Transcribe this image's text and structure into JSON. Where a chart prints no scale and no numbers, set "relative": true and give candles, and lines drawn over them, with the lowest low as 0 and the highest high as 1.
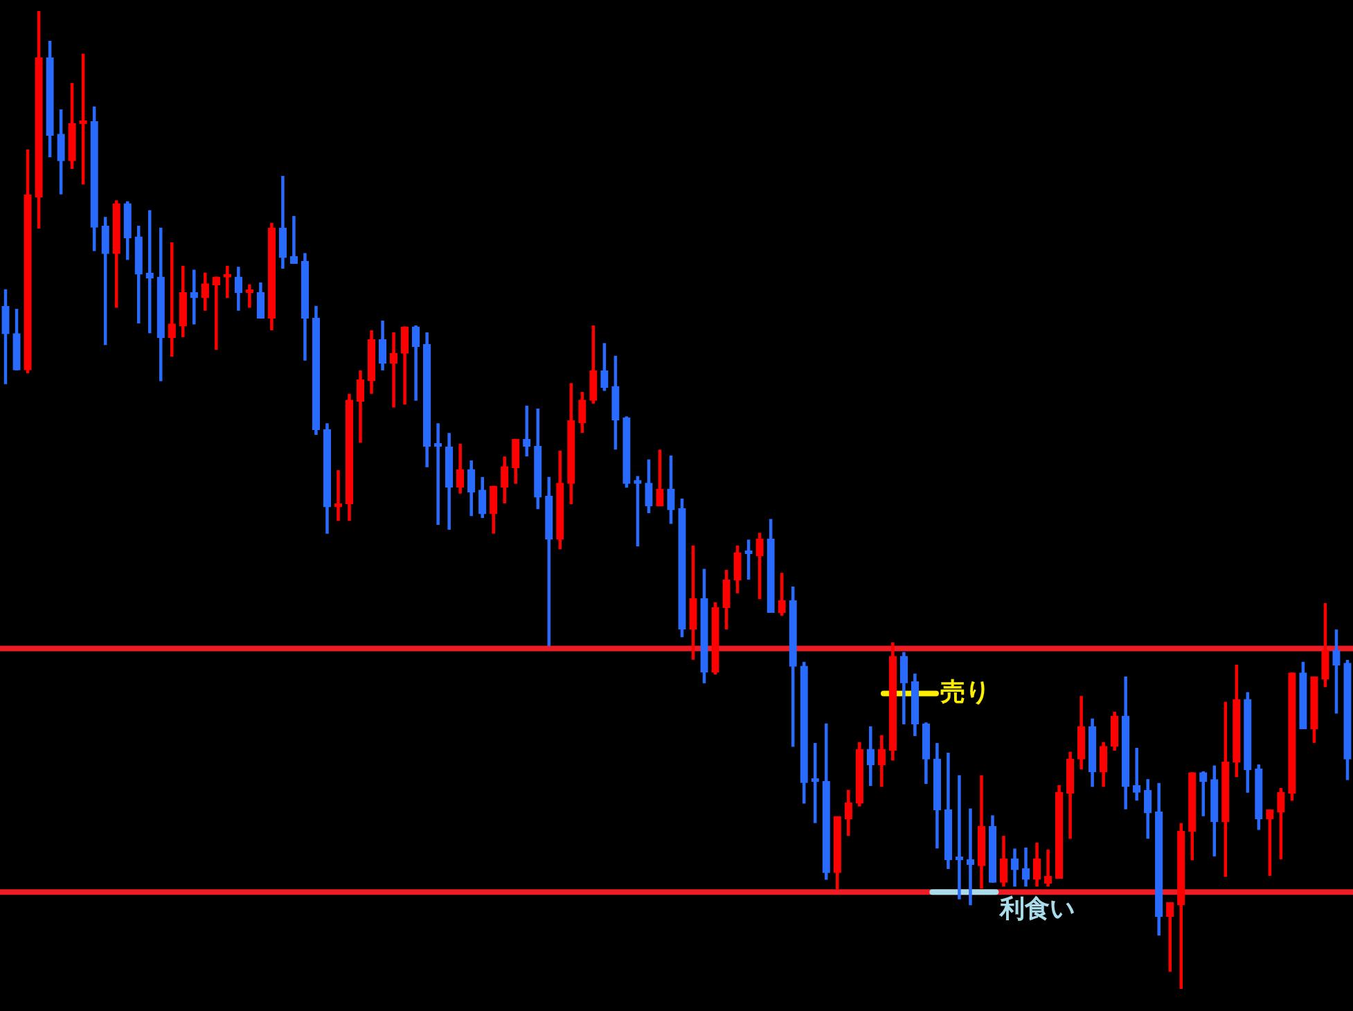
{
  "chart_data": {
    "type": "candlestick",
    "relative": true,
    "tick_labels": false,
    "legend": false,
    "categories": [
      null,
      null,
      null,
      null,
      null,
      null,
      null,
      null,
      null,
      null,
      null,
      null,
      null,
      null,
      null,
      null,
      null,
      null,
      null,
      null,
      null,
      null,
      null,
      null,
      null,
      null,
      null,
      null,
      null,
      null,
      null,
      null,
      null,
      null,
      null,
      null,
      null,
      null,
      null,
      null,
      null,
      null,
      null,
      null,
      null,
      null,
      null,
      null,
      null,
      null,
      null,
      null,
      null,
      null,
      null,
      null,
      null,
      null,
      null,
      null,
      null,
      null,
      null,
      null,
      null,
      null,
      null,
      null,
      null,
      null,
      null,
      null,
      null,
      null,
      null,
      null,
      null,
      null,
      null,
      null,
      null,
      null,
      null,
      null,
      null,
      null,
      null,
      null,
      null,
      null,
      null,
      null,
      null,
      null,
      null,
      null,
      null,
      null,
      null,
      null,
      null,
      null,
      null,
      null,
      null,
      null,
      null,
      null,
      null,
      null,
      null,
      null,
      null,
      null,
      null,
      null,
      null,
      null,
      null,
      null,
      null,
      null
    ],
    "ohlc": [
      [
        0.698,
        0.715,
        0.619,
        0.67
      ],
      [
        0.67,
        0.695,
        0.633,
        0.633
      ],
      [
        0.633,
        0.858,
        0.63,
        0.812
      ],
      [
        0.81,
        1,
        0.778,
        0.952
      ],
      [
        0.952,
        0.969,
        0.851,
        0.873
      ],
      [
        0.874,
        0.899,
        0.813,
        0.847
      ],
      [
        0.847,
        0.926,
        0.839,
        0.885
      ],
      [
        0.885,
        0.956,
        0.823,
        0.887
      ],
      [
        0.887,
        0.902,
        0.755,
        0.779
      ],
      [
        0.78,
        0.789,
        0.659,
        0.752
      ],
      [
        0.752,
        0.806,
        0.697,
        0.803
      ],
      [
        0.803,
        0.805,
        0.746,
        0.768
      ],
      [
        0.769,
        0.78,
        0.681,
        0.731
      ],
      [
        0.732,
        0.796,
        0.671,
        0.727
      ],
      [
        0.728,
        0.778,
        0.622,
        0.666
      ],
      [
        0.666,
        0.763,
        0.647,
        0.68
      ],
      [
        0.678,
        0.739,
        0.667,
        0.712
      ],
      [
        0.712,
        0.735,
        0.68,
        0.707
      ],
      [
        0.707,
        0.732,
        0.694,
        0.721
      ],
      [
        0.72,
        0.728,
        0.654,
        0.728
      ],
      [
        0.728,
        0.739,
        0.707,
        0.728
      ],
      [
        0.728,
        0.738,
        0.694,
        0.712
      ],
      [
        0.712,
        0.72,
        0.697,
        0.712
      ],
      [
        0.712,
        0.722,
        0.686,
        0.686
      ],
      [
        0.686,
        0.783,
        0.674,
        0.778
      ],
      [
        0.778,
        0.831,
        0.737,
        0.748
      ],
      [
        0.749,
        0.79,
        0.742,
        0.742
      ],
      [
        0.744,
        0.752,
        0.643,
        0.686
      ],
      [
        0.686,
        0.698,
        0.567,
        0.572
      ],
      [
        0.572,
        0.578,
        0.466,
        0.493
      ],
      [
        0.493,
        0.53,
        0.479,
        0.496
      ],
      [
        0.496,
        0.608,
        0.479,
        0.602
      ],
      [
        0.601,
        0.632,
        0.559,
        0.623
      ],
      [
        0.622,
        0.673,
        0.609,
        0.664
      ],
      [
        0.664,
        0.683,
        0.633,
        0.64
      ],
      [
        0.64,
        0.671,
        0.595,
        0.65
      ],
      [
        0.65,
        0.677,
        0.598,
        0.677
      ],
      [
        0.677,
        0.678,
        0.602,
        0.657
      ],
      [
        0.659,
        0.671,
        0.534,
        0.555
      ],
      [
        0.555,
        0.578,
        0.475,
        0.555
      ],
      [
        0.554,
        0.568,
        0.47,
        0.513
      ],
      [
        0.513,
        0.557,
        0.507,
        0.531
      ],
      [
        0.531,
        0.54,
        0.484,
        0.508
      ],
      [
        0.51,
        0.523,
        0.482,
        0.486
      ],
      [
        0.486,
        0.514,
        0.466,
        0.514
      ],
      [
        0.513,
        0.544,
        0.497,
        0.534
      ],
      [
        0.533,
        0.562,
        0.517,
        0.562
      ],
      [
        0.562,
        0.596,
        0.545,
        0.555
      ],
      [
        0.555,
        0.593,
        0.491,
        0.503
      ],
      [
        0.504,
        0.523,
        0.351,
        0.46
      ],
      [
        0.46,
        0.55,
        0.45,
        0.517
      ],
      [
        0.517,
        0.619,
        0.496,
        0.581
      ],
      [
        0.579,
        0.61,
        0.569,
        0.602
      ],
      [
        0.602,
        0.678,
        0.599,
        0.632
      ],
      [
        0.632,
        0.66,
        0.612,
        0.615
      ],
      [
        0.616,
        0.647,
        0.552,
        0.582
      ],
      [
        0.584,
        0.585,
        0.513,
        0.517
      ],
      [
        0.517,
        0.524,
        0.453,
        0.517
      ],
      [
        0.517,
        0.541,
        0.487,
        0.494
      ],
      [
        0.494,
        0.551,
        0.494,
        0.511
      ],
      [
        0.511,
        0.545,
        0.476,
        0.49
      ],
      [
        0.491,
        0.501,
        0.36,
        0.368
      ],
      [
        0.368,
        0.453,
        0.337,
        0.399
      ],
      [
        0.399,
        0.429,
        0.313,
        0.324
      ],
      [
        0.324,
        0.395,
        0.322,
        0.39
      ],
      [
        0.39,
        0.428,
        0.368,
        0.418
      ],
      [
        0.418,
        0.453,
        0.405,
        0.446
      ],
      [
        0.445,
        0.459,
        0.419,
        0.445
      ],
      [
        0.443,
        0.466,
        0.399,
        0.46
      ],
      [
        0.46,
        0.48,
        0.385,
        0.385
      ],
      [
        0.385,
        0.425,
        0.382,
        0.397
      ],
      [
        0.397,
        0.411,
        0.248,
        0.33
      ],
      [
        0.33,
        0.334,
        0.19,
        0.211
      ],
      [
        0.212,
        0.251,
        0.17,
        0.212
      ],
      [
        0.212,
        0.271,
        0.112,
        0.119
      ],
      [
        0.119,
        0.176,
        0.102,
        0.176
      ],
      [
        0.174,
        0.203,
        0.157,
        0.19
      ],
      [
        0.19,
        0.252,
        0.187,
        0.245
      ],
      [
        0.245,
        0.268,
        0.208,
        0.229
      ],
      [
        0.229,
        0.259,
        0.207,
        0.245
      ],
      [
        0.244,
        0.354,
        0.234,
        0.34
      ],
      [
        0.34,
        0.344,
        0.271,
        0.313
      ],
      [
        0.314,
        0.322,
        0.259,
        0.271
      ],
      [
        0.271,
        0.272,
        0.21,
        0.235
      ],
      [
        0.235,
        0.251,
        0.144,
        0.183
      ],
      [
        0.183,
        0.241,
        0.123,
        0.132
      ],
      [
        0.132,
        0.218,
        0.092,
        0.132
      ],
      [
        0.132,
        0.184,
        0.086,
        0.127
      ],
      [
        0.126,
        0.218,
        0.103,
        0.166
      ],
      [
        0.166,
        0.177,
        0.109,
        0.109
      ],
      [
        0.109,
        0.156,
        0.105,
        0.133
      ],
      [
        0.133,
        0.143,
        0.105,
        0.122
      ],
      [
        0.123,
        0.144,
        0.105,
        0.112
      ],
      [
        0.112,
        0.149,
        0.105,
        0.133
      ],
      [
        0.108,
        0.142,
        0.105,
        0.115
      ],
      [
        0.113,
        0.208,
        0.113,
        0.201
      ],
      [
        0.2,
        0.242,
        0.154,
        0.235
      ],
      [
        0.235,
        0.299,
        0.225,
        0.268
      ],
      [
        0.268,
        0.276,
        0.207,
        0.222
      ],
      [
        0.222,
        0.252,
        0.207,
        0.248
      ],
      [
        0.248,
        0.283,
        0.244,
        0.279
      ],
      [
        0.279,
        0.319,
        0.184,
        0.207
      ],
      [
        0.208,
        0.246,
        0.193,
        0.201
      ],
      [
        0.203,
        0.214,
        0.154,
        0.18
      ],
      [
        0.181,
        0.21,
        0.055,
        0.074
      ],
      [
        0.074,
        0.088,
        0.018,
        0.088
      ],
      [
        0.086,
        0.169,
        0,
        0.161
      ],
      [
        0.161,
        0.221,
        0.132,
        0.221
      ],
      [
        0.221,
        0.222,
        0.177,
        0.212
      ],
      [
        0.214,
        0.228,
        0.136,
        0.171
      ],
      [
        0.171,
        0.293,
        0.115,
        0.232
      ],
      [
        0.232,
        0.331,
        0.217,
        0.296
      ],
      [
        0.296,
        0.303,
        0.201,
        0.224
      ],
      [
        0.225,
        0.229,
        0.163,
        0.174
      ],
      [
        0.174,
        0.183,
        0.116,
        0.183
      ],
      [
        0.181,
        0.205,
        0.133,
        0.201
      ],
      [
        0.2,
        0.323,
        0.193,
        0.323
      ],
      [
        0.323,
        0.334,
        0.266,
        0.266
      ],
      [
        0.266,
        0.319,
        0.252,
        0.319
      ],
      [
        0.317,
        0.394,
        0.309,
        0.346
      ],
      [
        0.346,
        0.367,
        0.282,
        0.331
      ],
      [
        0.333,
        0.336,
        0.214,
        0.235
      ]
    ],
    "colors": [
      "#2a6bff",
      "#2a6bff",
      "#ff0000",
      "#ff0000",
      "#2a6bff",
      "#2a6bff",
      "#ff0000",
      "#ff0000",
      "#2a6bff",
      "#2a6bff",
      "#ff0000",
      "#2a6bff",
      "#2a6bff",
      "#2a6bff",
      "#2a6bff",
      "#ff0000",
      "#ff0000",
      "#2a6bff",
      "#ff0000",
      "#ff0000",
      "#ff0000",
      "#2a6bff",
      "#ff0000",
      "#2a6bff",
      "#ff0000",
      "#2a6bff",
      "#2a6bff",
      "#2a6bff",
      "#2a6bff",
      "#2a6bff",
      "#ff0000",
      "#ff0000",
      "#ff0000",
      "#ff0000",
      "#2a6bff",
      "#ff0000",
      "#ff0000",
      "#2a6bff",
      "#2a6bff",
      "#2a6bff",
      "#2a6bff",
      "#ff0000",
      "#2a6bff",
      "#2a6bff",
      "#ff0000",
      "#ff0000",
      "#ff0000",
      "#2a6bff",
      "#2a6bff",
      "#2a6bff",
      "#ff0000",
      "#ff0000",
      "#ff0000",
      "#ff0000",
      "#2a6bff",
      "#2a6bff",
      "#2a6bff",
      "#2a6bff",
      "#2a6bff",
      "#ff0000",
      "#2a6bff",
      "#2a6bff",
      "#ff0000",
      "#2a6bff",
      "#ff0000",
      "#ff0000",
      "#ff0000",
      "#2a6bff",
      "#ff0000",
      "#2a6bff",
      "#ff0000",
      "#2a6bff",
      "#2a6bff",
      "#2a6bff",
      "#2a6bff",
      "#ff0000",
      "#ff0000",
      "#ff0000",
      "#2a6bff",
      "#ff0000",
      "#ff0000",
      "#2a6bff",
      "#2a6bff",
      "#2a6bff",
      "#2a6bff",
      "#2a6bff",
      "#2a6bff",
      "#2a6bff",
      "#ff0000",
      "#2a6bff",
      "#ff0000",
      "#2a6bff",
      "#2a6bff",
      "#ff0000",
      "#ff0000",
      "#ff0000",
      "#ff0000",
      "#ff0000",
      "#2a6bff",
      "#ff0000",
      "#ff0000",
      "#2a6bff",
      "#2a6bff",
      "#2a6bff",
      "#2a6bff",
      "#ff0000",
      "#ff0000",
      "#ff0000",
      "#2a6bff",
      "#2a6bff",
      "#ff0000",
      "#ff0000",
      "#2a6bff",
      "#2a6bff",
      "#ff0000",
      "#ff0000",
      "#ff0000",
      "#2a6bff",
      "#ff0000",
      "#ff0000",
      "#2a6bff",
      "#2a6bff"
    ],
    "ref_lines": [
      {
        "axis": "y",
        "value": 0.348,
        "color": "#ee1c25"
      },
      {
        "axis": "y",
        "value": 0.099,
        "color": "#ee1c25"
      }
    ],
    "annotations": [
      "売り",
      {
        "text": "利食い",
        "y": 0.099
      }
    ]
  }
}
